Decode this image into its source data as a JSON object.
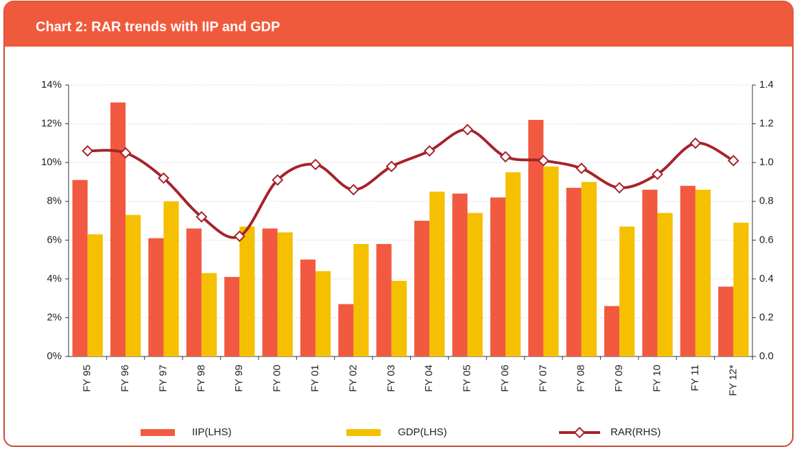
{
  "chart_data": {
    "type": "bar",
    "title": "Chart 2: RAR trends with IIP and GDP",
    "categories": [
      "FY 95",
      "FY 96",
      "FY 97",
      "FY 98",
      "FY 99",
      "FY 00",
      "FY 01",
      "FY 02",
      "FY 03",
      "FY 04",
      "FY 05",
      "FY 06",
      "FY 07",
      "FY 08",
      "FY 09",
      "FY 10",
      "FY 11",
      "FY 12*"
    ],
    "series": [
      {
        "name": "IIP(LHS)",
        "type": "bar",
        "color": "#f15a40",
        "values": [
          9.1,
          13.1,
          6.1,
          6.6,
          4.1,
          6.6,
          5.0,
          2.7,
          5.8,
          7.0,
          8.4,
          8.2,
          12.2,
          8.7,
          2.6,
          8.6,
          8.8,
          3.6
        ]
      },
      {
        "name": "GDP(LHS)",
        "type": "bar",
        "color": "#f5c000",
        "values": [
          6.3,
          7.3,
          8.0,
          4.3,
          6.7,
          6.4,
          4.4,
          5.8,
          3.9,
          8.5,
          7.4,
          9.5,
          9.8,
          9.0,
          6.7,
          7.4,
          8.6,
          6.9
        ]
      },
      {
        "name": "RAR(RHS)",
        "type": "line",
        "axis": "y2",
        "color": "#a6232b",
        "values": [
          1.06,
          1.05,
          0.92,
          0.72,
          0.62,
          0.91,
          0.99,
          0.86,
          0.98,
          1.06,
          1.17,
          1.03,
          1.01,
          0.97,
          0.87,
          0.94,
          1.1,
          1.01
        ]
      }
    ],
    "ylim": [
      0,
      14
    ],
    "yticks": [
      {
        "value": 0,
        "label": "0%"
      },
      {
        "value": 2,
        "label": "2%"
      },
      {
        "value": 4,
        "label": "4%"
      },
      {
        "value": 6,
        "label": "6%"
      },
      {
        "value": 8,
        "label": "8%"
      },
      {
        "value": 10,
        "label": "10%"
      },
      {
        "value": 12,
        "label": "12%"
      },
      {
        "value": 14,
        "label": "14%"
      }
    ],
    "y2lim": [
      0,
      1.4
    ],
    "y2ticks": [
      {
        "value": 0,
        "label": "0.0"
      },
      0.2,
      0.4,
      0.6,
      0.8,
      {
        "value": 1,
        "label": "1.0"
      },
      1.2,
      1.4
    ],
    "grid": true
  }
}
